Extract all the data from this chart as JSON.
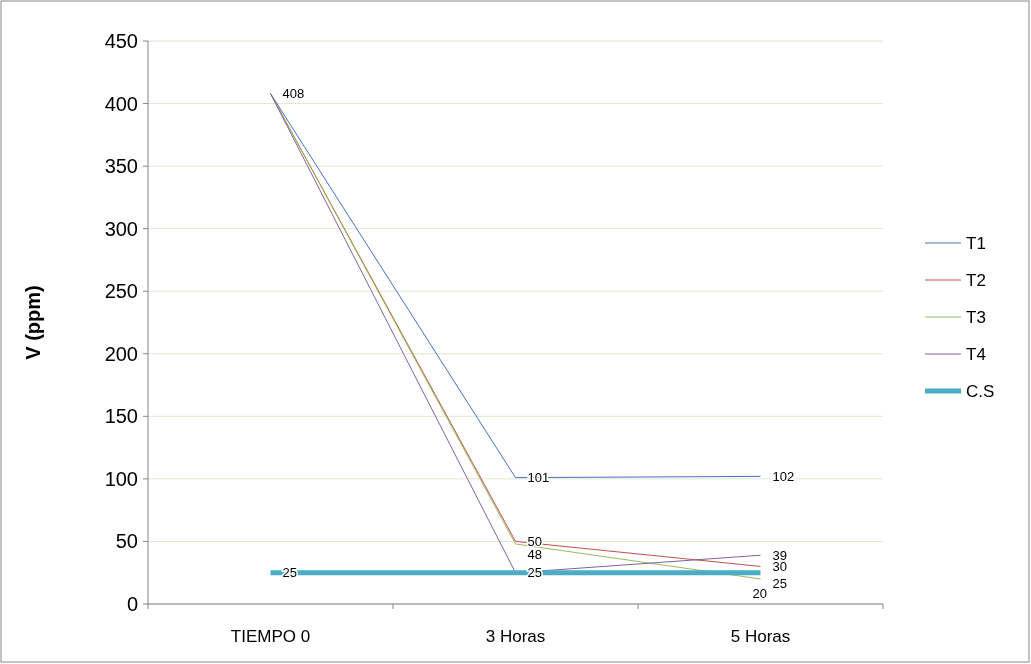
{
  "chart_data": {
    "type": "line",
    "ylabel": "V (ppm)",
    "categories": [
      "TIEMPO 0",
      "3 Horas",
      "5 Horas"
    ],
    "ylim": [
      0,
      450
    ],
    "yticks": [
      0,
      50,
      100,
      150,
      200,
      250,
      300,
      350,
      400,
      450
    ],
    "grid": "y",
    "legend": "right",
    "marker": "none",
    "series": [
      {
        "name": "T1",
        "color": "#4472c4",
        "values": [
          408,
          101,
          102
        ],
        "value_labels": [
          "408",
          "101",
          "102"
        ]
      },
      {
        "name": "T2",
        "color": "#c0504d",
        "values": [
          408,
          50,
          30
        ],
        "value_labels": [
          null,
          "50",
          "30"
        ]
      },
      {
        "name": "T3",
        "color": "#9bbb59",
        "values": [
          408,
          48,
          20
        ],
        "value_labels": [
          null,
          "48",
          "20"
        ]
      },
      {
        "name": "T4",
        "color": "#8064a2",
        "values": [
          408,
          25,
          39
        ],
        "value_labels": [
          null,
          "25",
          "39"
        ]
      },
      {
        "name": "C.S",
        "color": "#4bacc6",
        "values": [
          25,
          25,
          25
        ],
        "value_labels": [
          "25",
          null,
          "25"
        ]
      }
    ]
  }
}
